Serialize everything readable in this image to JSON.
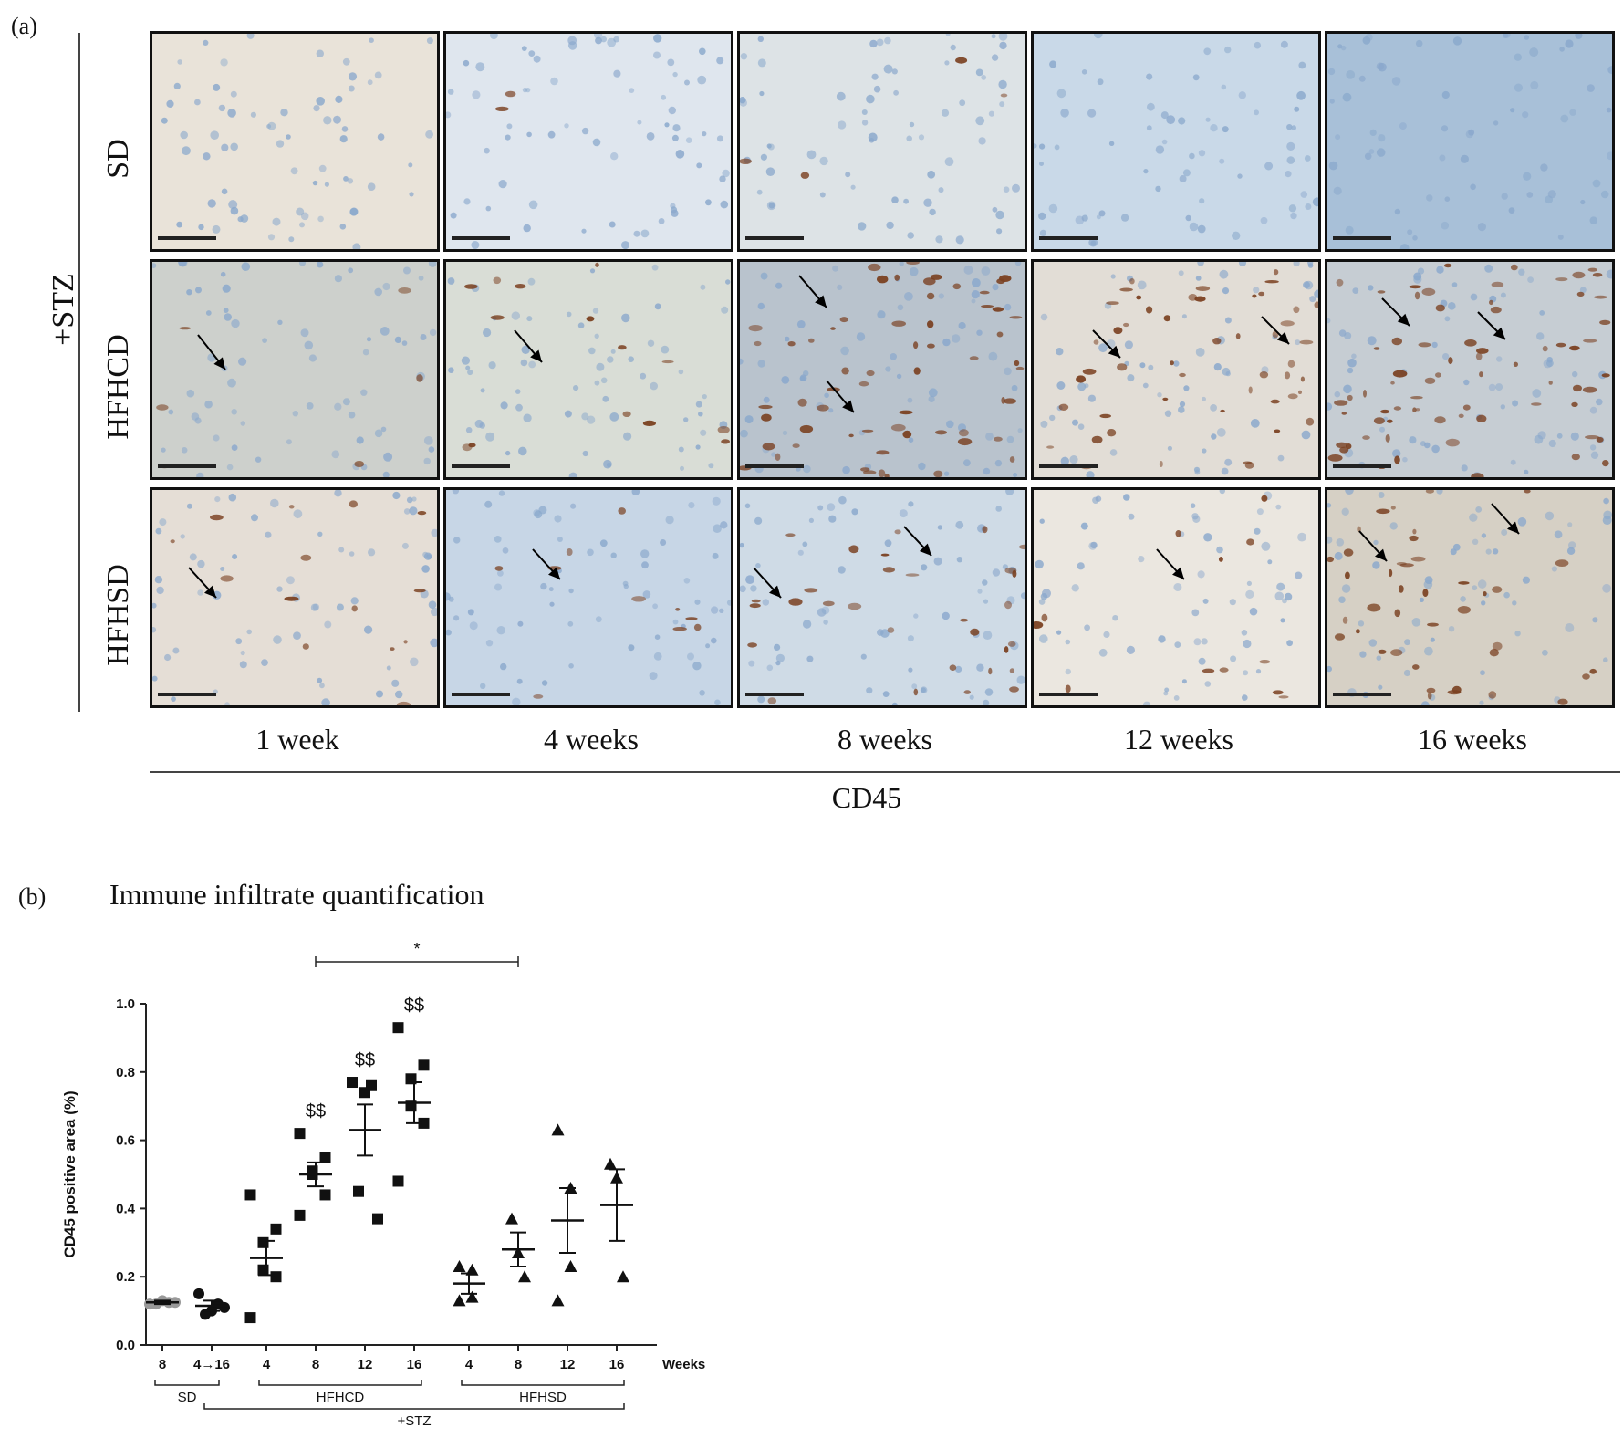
{
  "panel_a": {
    "label": "(a)",
    "group_label": "+STZ",
    "rows": [
      "SD",
      "HFHCD",
      "HFHSD"
    ],
    "columns": [
      "1 week",
      "4 weeks",
      "8 weeks",
      "12 weeks",
      "16 weeks"
    ],
    "stain_label": "CD45",
    "tile_tints": [
      [
        "#e9e3d9",
        "#dfe6ee",
        "#dde3e6",
        "#c9d9e8",
        "#a8c0d8"
      ],
      [
        "#cdd0cc",
        "#d9ddd6",
        "#b9c3cd",
        "#e2ddd6",
        "#c6cdd3"
      ],
      [
        "#e5ded6",
        "#c7d6e6",
        "#cfdbe6",
        "#ebe7e0",
        "#d6d0c5"
      ]
    ],
    "stain_color": "#7a4020",
    "nuclei_color": "#8aa8cc"
  },
  "panel_b": {
    "label": "(b)",
    "title": "Immune infiltrate quantification"
  },
  "chart_data": {
    "type": "scatter",
    "ylabel": "CD45 positive area (%)",
    "ylim": [
      0.0,
      1.0
    ],
    "yticks": [
      "0.0",
      "0.2",
      "0.4",
      "0.6",
      "0.8",
      "1.0"
    ],
    "x_tick_labels": [
      "8",
      "4→16",
      "4",
      "8",
      "12",
      "16",
      "4",
      "8",
      "12",
      "16"
    ],
    "x_unit": "Weeks",
    "group_labels": [
      {
        "text": "SD",
        "from": 0,
        "to": 1
      },
      {
        "text": "HFHCD",
        "from": 2,
        "to": 5
      },
      {
        "text": "HFHSD",
        "from": 6,
        "to": 9
      },
      {
        "text": "+STZ",
        "from": 1,
        "to": 9
      }
    ],
    "groups": [
      {
        "marker": "circle",
        "color": "#999999",
        "points": [
          0.12,
          0.125,
          0.13,
          0.12,
          0.125
        ],
        "mean": 0.125,
        "sem": 0.005
      },
      {
        "marker": "circle",
        "color": "#111111",
        "points": [
          0.15,
          0.12,
          0.1,
          0.09,
          0.11
        ],
        "mean": 0.115,
        "sem": 0.015
      },
      {
        "marker": "square",
        "color": "#111111",
        "points": [
          0.44,
          0.34,
          0.3,
          0.22,
          0.2,
          0.08
        ],
        "mean": 0.255,
        "sem": 0.05
      },
      {
        "marker": "square",
        "color": "#111111",
        "points": [
          0.62,
          0.55,
          0.51,
          0.5,
          0.44,
          0.38
        ],
        "mean": 0.5,
        "sem": 0.035
      },
      {
        "marker": "square",
        "color": "#111111",
        "points": [
          0.77,
          0.76,
          0.74,
          0.45,
          0.37
        ],
        "mean": 0.63,
        "sem": 0.075
      },
      {
        "marker": "square",
        "color": "#111111",
        "points": [
          0.93,
          0.82,
          0.78,
          0.7,
          0.65,
          0.48
        ],
        "mean": 0.71,
        "sem": 0.06
      },
      {
        "marker": "triangle",
        "color": "#111111",
        "points": [
          0.23,
          0.22,
          0.14,
          0.13
        ],
        "mean": 0.18,
        "sem": 0.03
      },
      {
        "marker": "triangle",
        "color": "#111111",
        "points": [
          0.37,
          0.27,
          0.2
        ],
        "mean": 0.28,
        "sem": 0.05
      },
      {
        "marker": "triangle",
        "color": "#111111",
        "points": [
          0.63,
          0.46,
          0.23,
          0.13
        ],
        "mean": 0.365,
        "sem": 0.095
      },
      {
        "marker": "triangle",
        "color": "#111111",
        "points": [
          0.53,
          0.49,
          0.2
        ],
        "mean": 0.41,
        "sem": 0.105
      }
    ],
    "annotations": [
      {
        "text": "$$",
        "group": 3
      },
      {
        "text": "$$",
        "group": 4
      },
      {
        "text": "$$",
        "group": 5
      }
    ],
    "significance": {
      "text": "*",
      "from": 3,
      "to": 7
    }
  }
}
